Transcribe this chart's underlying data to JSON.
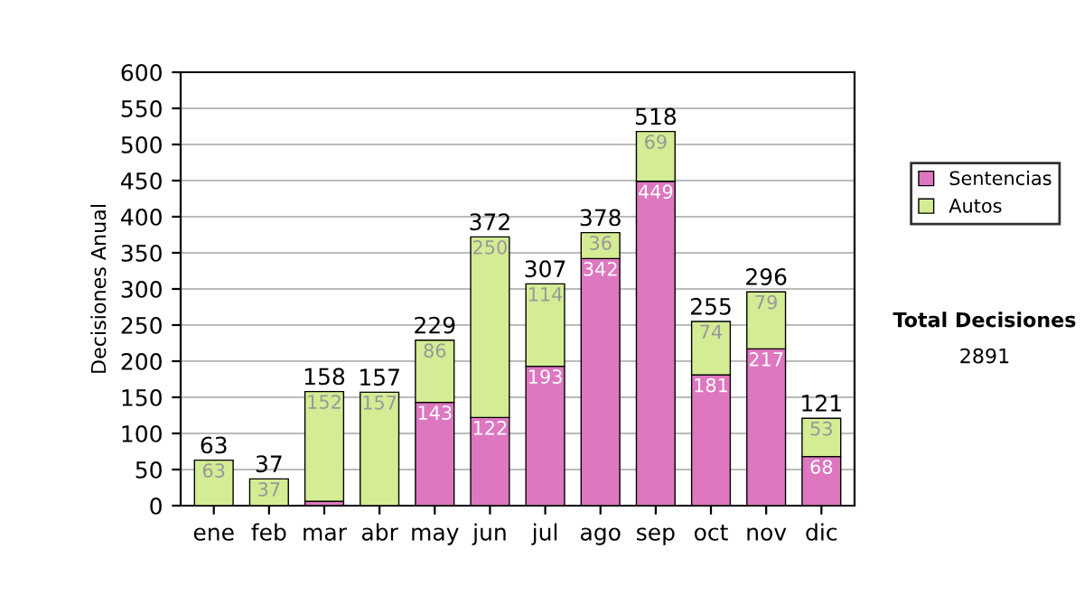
{
  "chart_data": {
    "type": "bar",
    "stacked": true,
    "ylabel": "Decisiones Anual",
    "categories": [
      "ene",
      "feb",
      "mar",
      "abr",
      "may",
      "jun",
      "jul",
      "ago",
      "sep",
      "oct",
      "nov",
      "dic"
    ],
    "series": [
      {
        "name": "Sentencias",
        "color": "#dd77c0",
        "values": [
          0,
          0,
          6,
          0,
          143,
          122,
          193,
          342,
          449,
          181,
          217,
          68
        ],
        "value_labels": [
          null,
          null,
          null,
          null,
          "143",
          "122",
          "193",
          "342",
          "449",
          "181",
          "217",
          "68"
        ]
      },
      {
        "name": "Autos",
        "color": "#d4ec94",
        "values": [
          63,
          37,
          152,
          157,
          86,
          250,
          114,
          36,
          69,
          74,
          79,
          53
        ],
        "value_labels": [
          "63",
          "37",
          "152",
          "157",
          "86",
          "250",
          "114",
          "36",
          "69",
          "74",
          "79",
          "53"
        ]
      }
    ],
    "totals": [
      "63",
      "37",
      "158",
      "157",
      "229",
      "372",
      "307",
      "378",
      "518",
      "255",
      "296",
      "121"
    ],
    "ylim": [
      0,
      600
    ],
    "yticks": [
      0,
      50,
      100,
      150,
      200,
      250,
      300,
      350,
      400,
      450,
      500,
      550,
      600
    ],
    "grid": "y",
    "legend": "right",
    "annotations": [
      "Total Decisiones",
      "2891"
    ]
  }
}
